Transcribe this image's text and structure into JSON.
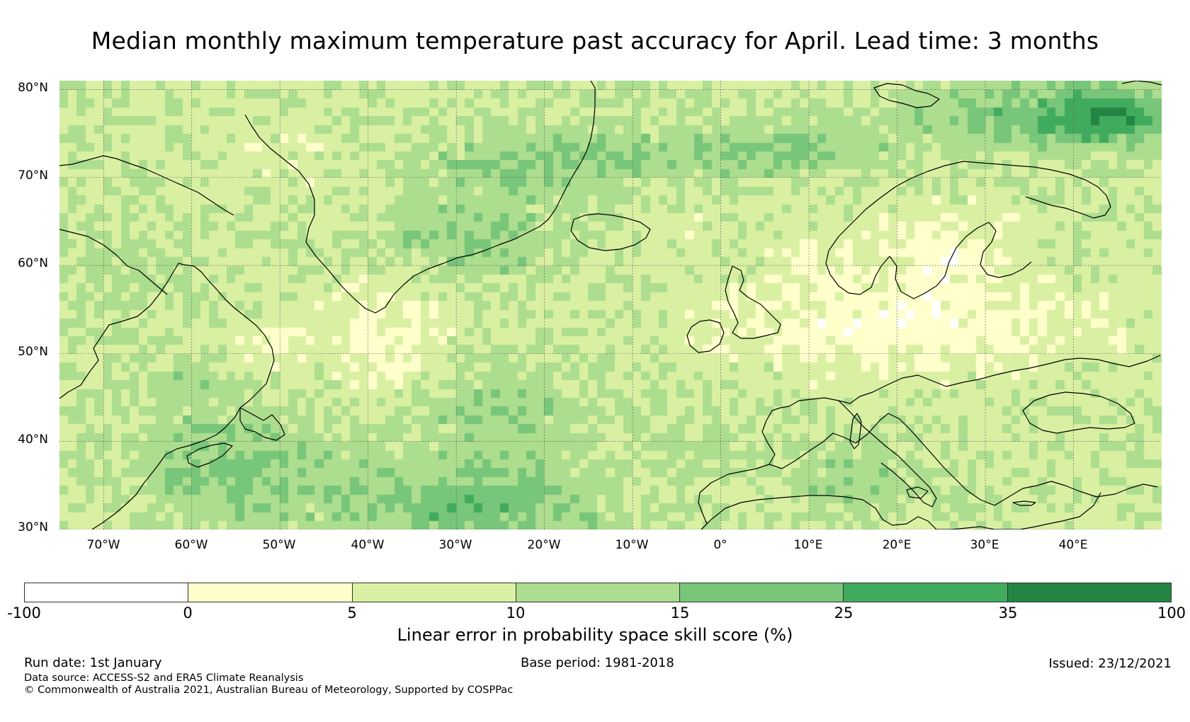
{
  "title": "Median monthly maximum temperature past accuracy for April. Lead time: 3 months",
  "map": {
    "extent": {
      "lon_min": -75,
      "lon_max": 50,
      "lat_min": 30,
      "lat_max": 81
    },
    "graticule": {
      "lons": [
        -70,
        -60,
        -50,
        -40,
        -30,
        -20,
        -10,
        0,
        10,
        20,
        30,
        40
      ],
      "lats": [
        30,
        40,
        50,
        60,
        70,
        80
      ]
    },
    "lat_labels": [
      "80°N",
      "70°N",
      "60°N",
      "50°N",
      "40°N",
      "30°N"
    ],
    "lon_labels": [
      "70°W",
      "60°W",
      "50°W",
      "40°W",
      "30°W",
      "20°W",
      "10°W",
      "0°",
      "10°E",
      "20°E",
      "30°E",
      "40°E"
    ],
    "coastline_color": "#000000"
  },
  "colorbar": {
    "ticks": [
      "-100",
      "0",
      "5",
      "10",
      "15",
      "25",
      "35",
      "100"
    ],
    "colors": [
      "#ffffff",
      "#ffffcc",
      "#d9f0a3",
      "#addd8e",
      "#78c679",
      "#41ab5d",
      "#238443"
    ],
    "label": "Linear error in probability space skill score (%)"
  },
  "footer": {
    "run_date": "Run date: 1st January",
    "base_period": "Base period: 1981-2018",
    "issued": "Issued: 23/12/2021",
    "data_source": "Data source: ACCESS-S2 and ERA5 Climate Reanalysis",
    "copyright": "© Commonwealth of Australia 2021, Australian Bureau of Meteorology, Supported by COSPPac"
  }
}
